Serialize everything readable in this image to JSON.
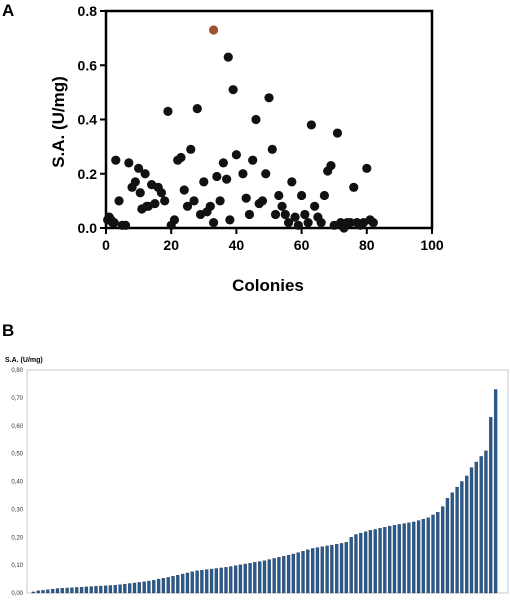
{
  "panels": {
    "a_letter": "A",
    "b_letter": "B"
  },
  "chart_data": [
    {
      "type": "scatter",
      "panel": "A",
      "title": "",
      "xlabel": "Colonies",
      "ylabel": "S.A. (U/mg)",
      "xlim": [
        0,
        100
      ],
      "ylim": [
        0,
        0.8
      ],
      "xticks": [
        "0",
        "20",
        "40",
        "60",
        "80",
        "100"
      ],
      "yticks": [
        "0.0",
        "0.2",
        "0.4",
        "0.6",
        "0.8"
      ],
      "grid": false,
      "colors": {
        "points": "#111111",
        "highlight": "#a0522d"
      },
      "highlight": {
        "x": 33,
        "y": 0.73
      },
      "points": [
        [
          0.5,
          0.03
        ],
        [
          1,
          0.04
        ],
        [
          1.5,
          0.03
        ],
        [
          2,
          0.02
        ],
        [
          2.5,
          0.02
        ],
        [
          3,
          0.25
        ],
        [
          4,
          0.1
        ],
        [
          5,
          0.01
        ],
        [
          6,
          0.01
        ],
        [
          7,
          0.24
        ],
        [
          8,
          0.15
        ],
        [
          9,
          0.17
        ],
        [
          10,
          0.22
        ],
        [
          10.5,
          0.13
        ],
        [
          11,
          0.07
        ],
        [
          12,
          0.2
        ],
        [
          12.5,
          0.08
        ],
        [
          13,
          0.08
        ],
        [
          14,
          0.16
        ],
        [
          15,
          0.09
        ],
        [
          16,
          0.15
        ],
        [
          17,
          0.13
        ],
        [
          18,
          0.1
        ],
        [
          19,
          0.43
        ],
        [
          20,
          0.01
        ],
        [
          21,
          0.03
        ],
        [
          22,
          0.25
        ],
        [
          23,
          0.26
        ],
        [
          24,
          0.14
        ],
        [
          25,
          0.08
        ],
        [
          26,
          0.29
        ],
        [
          27,
          0.1
        ],
        [
          28,
          0.44
        ],
        [
          29,
          0.05
        ],
        [
          30,
          0.17
        ],
        [
          31,
          0.06
        ],
        [
          32,
          0.08
        ],
        [
          33,
          0.02
        ],
        [
          34,
          0.19
        ],
        [
          35,
          0.1
        ],
        [
          36,
          0.24
        ],
        [
          37,
          0.18
        ],
        [
          37.5,
          0.63
        ],
        [
          38,
          0.03
        ],
        [
          39,
          0.51
        ],
        [
          40,
          0.27
        ],
        [
          42,
          0.2
        ],
        [
          43,
          0.11
        ],
        [
          44,
          0.05
        ],
        [
          45,
          0.25
        ],
        [
          46,
          0.4
        ],
        [
          47,
          0.09
        ],
        [
          48,
          0.1
        ],
        [
          49,
          0.2
        ],
        [
          50,
          0.48
        ],
        [
          51,
          0.29
        ],
        [
          52,
          0.05
        ],
        [
          53,
          0.12
        ],
        [
          54,
          0.08
        ],
        [
          55,
          0.05
        ],
        [
          56,
          0.02
        ],
        [
          57,
          0.17
        ],
        [
          58,
          0.04
        ],
        [
          59,
          0.01
        ],
        [
          60,
          0.12
        ],
        [
          61,
          0.05
        ],
        [
          62,
          0.02
        ],
        [
          63,
          0.38
        ],
        [
          64,
          0.08
        ],
        [
          65,
          0.04
        ],
        [
          66,
          0.02
        ],
        [
          67,
          0.12
        ],
        [
          68,
          0.21
        ],
        [
          69,
          0.23
        ],
        [
          70,
          0.01
        ],
        [
          71,
          0.35
        ],
        [
          72,
          0.02
        ],
        [
          73,
          0.0
        ],
        [
          74,
          0.02
        ],
        [
          75,
          0.02
        ],
        [
          76,
          0.15
        ],
        [
          77,
          0.02
        ],
        [
          78,
          0.01
        ],
        [
          79,
          0.02
        ],
        [
          80,
          0.22
        ],
        [
          81,
          0.03
        ],
        [
          82,
          0.02
        ]
      ]
    },
    {
      "type": "bar",
      "panel": "B",
      "title": "",
      "xlabel": "",
      "ylabel": "S.A. (U/mg)",
      "ylim": [
        0,
        0.8
      ],
      "yticks": [
        "0,00",
        "0,10",
        "0,20",
        "0,30",
        "0,40",
        "0,50",
        "0,60",
        "0,70",
        "0,80"
      ],
      "grid": false,
      "colors": {
        "bar": "#2a5a8c",
        "bar_edge": "#1a2f4a",
        "frame": "#c8c8c8"
      },
      "values": [
        0.004,
        0.008,
        0.01,
        0.012,
        0.014,
        0.016,
        0.017,
        0.018,
        0.019,
        0.02,
        0.021,
        0.022,
        0.023,
        0.024,
        0.025,
        0.026,
        0.027,
        0.028,
        0.03,
        0.032,
        0.034,
        0.036,
        0.038,
        0.04,
        0.043,
        0.046,
        0.05,
        0.053,
        0.056,
        0.06,
        0.064,
        0.068,
        0.072,
        0.076,
        0.08,
        0.082,
        0.084,
        0.086,
        0.088,
        0.09,
        0.092,
        0.095,
        0.098,
        0.101,
        0.104,
        0.107,
        0.11,
        0.113,
        0.116,
        0.12,
        0.124,
        0.128,
        0.132,
        0.136,
        0.14,
        0.145,
        0.15,
        0.155,
        0.16,
        0.163,
        0.166,
        0.169,
        0.172,
        0.175,
        0.178,
        0.182,
        0.2,
        0.21,
        0.215,
        0.22,
        0.225,
        0.228,
        0.232,
        0.236,
        0.24,
        0.243,
        0.246,
        0.249,
        0.252,
        0.255,
        0.26,
        0.265,
        0.27,
        0.28,
        0.29,
        0.31,
        0.34,
        0.36,
        0.38,
        0.4,
        0.42,
        0.45,
        0.47,
        0.49,
        0.51,
        0.63,
        0.73
      ]
    }
  ]
}
